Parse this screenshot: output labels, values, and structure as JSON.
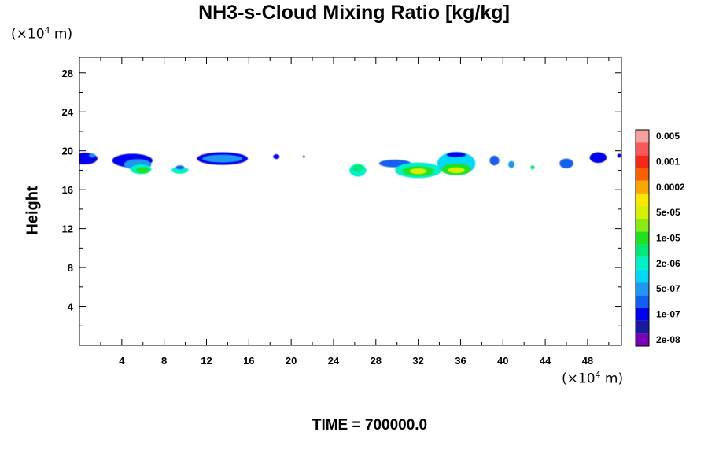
{
  "chart_data": {
    "type": "heatmap",
    "title": "NH3-s-Cloud Mixing Ratio [kg/kg]",
    "ylabel": "Height",
    "x_unit_prefix": "(×10",
    "x_unit_exp": "4",
    "x_unit_suffix": " m)",
    "y_unit_prefix": "(×10",
    "y_unit_exp": "4",
    "y_unit_suffix": " m)",
    "footer": "TIME = 700000.0",
    "xlim": [
      0,
      51.2
    ],
    "ylim": [
      0,
      29.6
    ],
    "x_ticks": [
      4,
      8,
      12,
      16,
      20,
      24,
      28,
      32,
      36,
      40,
      44,
      48
    ],
    "y_ticks": [
      4,
      8,
      12,
      16,
      20,
      24,
      28
    ],
    "colorbar": {
      "colors": [
        "#7a00b8",
        "#1a1aa0",
        "#0000ee",
        "#1260f0",
        "#1e98f0",
        "#00d8f8",
        "#00f0c8",
        "#00e878",
        "#20e020",
        "#88ec10",
        "#d8f000",
        "#f8e800",
        "#f8a800",
        "#f86000",
        "#f82818",
        "#f85858",
        "#f8a0a0"
      ],
      "labels": [
        "2e-08",
        "1e-07",
        "5e-07",
        "2e-06",
        "1e-05",
        "5e-05",
        "0.0002",
        "0.001",
        "0.005"
      ]
    },
    "cloud_cells": [
      {
        "x": 0.5,
        "y": 19.2,
        "w": 2.4,
        "h": 1.2,
        "level": 2
      },
      {
        "x": 1.2,
        "y": 19.5,
        "w": 0.6,
        "h": 0.4,
        "level": 4
      },
      {
        "x": 5.0,
        "y": 19.0,
        "w": 3.8,
        "h": 1.4,
        "level": 2
      },
      {
        "x": 5.5,
        "y": 18.6,
        "w": 2.6,
        "h": 1.1,
        "level": 4
      },
      {
        "x": 5.8,
        "y": 18.1,
        "w": 2.0,
        "h": 1.0,
        "level": 6
      },
      {
        "x": 6.0,
        "y": 18.0,
        "w": 1.3,
        "h": 0.6,
        "level": 8
      },
      {
        "x": 9.5,
        "y": 18.0,
        "w": 1.6,
        "h": 0.7,
        "level": 6
      },
      {
        "x": 9.5,
        "y": 18.3,
        "w": 0.8,
        "h": 0.4,
        "level": 3
      },
      {
        "x": 13.5,
        "y": 19.2,
        "w": 4.8,
        "h": 1.3,
        "level": 2
      },
      {
        "x": 13.5,
        "y": 19.2,
        "w": 3.8,
        "h": 0.8,
        "level": 4
      },
      {
        "x": 18.6,
        "y": 19.4,
        "w": 0.6,
        "h": 0.5,
        "level": 2
      },
      {
        "x": 21.2,
        "y": 19.4,
        "w": 0.2,
        "h": 0.2,
        "level": 2
      },
      {
        "x": 26.3,
        "y": 18.0,
        "w": 1.6,
        "h": 1.3,
        "level": 6
      },
      {
        "x": 26.3,
        "y": 18.2,
        "w": 1.0,
        "h": 0.7,
        "level": 7
      },
      {
        "x": 29.8,
        "y": 18.7,
        "w": 3.0,
        "h": 0.8,
        "level": 3
      },
      {
        "x": 32.0,
        "y": 18.0,
        "w": 4.4,
        "h": 1.6,
        "level": 6
      },
      {
        "x": 32.0,
        "y": 17.9,
        "w": 3.0,
        "h": 1.0,
        "level": 8
      },
      {
        "x": 32.0,
        "y": 17.9,
        "w": 1.6,
        "h": 0.6,
        "level": 10
      },
      {
        "x": 35.6,
        "y": 18.7,
        "w": 3.6,
        "h": 2.4,
        "level": 5
      },
      {
        "x": 35.6,
        "y": 18.1,
        "w": 2.8,
        "h": 1.2,
        "level": 8
      },
      {
        "x": 35.6,
        "y": 18.0,
        "w": 1.6,
        "h": 0.6,
        "level": 10
      },
      {
        "x": 35.6,
        "y": 19.6,
        "w": 1.8,
        "h": 0.5,
        "level": 2
      },
      {
        "x": 39.2,
        "y": 19.0,
        "w": 0.9,
        "h": 1.0,
        "level": 3
      },
      {
        "x": 40.8,
        "y": 18.6,
        "w": 0.6,
        "h": 0.7,
        "level": 4
      },
      {
        "x": 42.8,
        "y": 18.3,
        "w": 0.4,
        "h": 0.4,
        "level": 7
      },
      {
        "x": 46.0,
        "y": 18.7,
        "w": 1.3,
        "h": 1.0,
        "level": 3
      },
      {
        "x": 49.0,
        "y": 19.3,
        "w": 1.6,
        "h": 1.1,
        "level": 2
      },
      {
        "x": 51.0,
        "y": 19.5,
        "w": 0.4,
        "h": 0.4,
        "level": 2
      }
    ]
  }
}
